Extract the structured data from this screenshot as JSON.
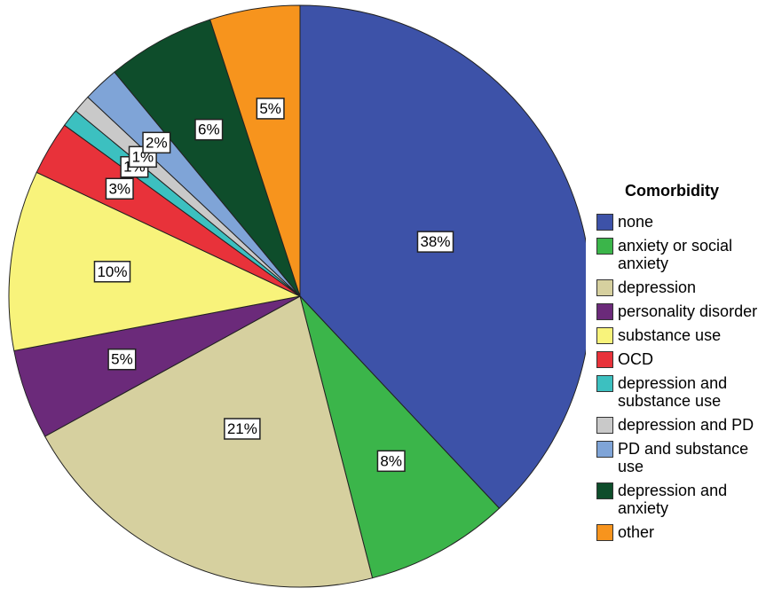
{
  "chart_data": {
    "type": "pie",
    "legend_title": "Comorbidity",
    "categories": [
      "none",
      "anxiety or social anxiety",
      "depression",
      "personality disorder",
      "substance use",
      "OCD",
      "depression and substance use",
      "depression and PD",
      "PD and substance use",
      "depression and anxiety",
      "other"
    ],
    "values": [
      38,
      8,
      21,
      5,
      10,
      3,
      1,
      1,
      2,
      6,
      5
    ],
    "value_labels": [
      "38%",
      "8%",
      "21%",
      "5%",
      "10%",
      "3%",
      "1%",
      "1%",
      "2%",
      "6%",
      "5%"
    ],
    "colors": [
      "#3d52a8",
      "#3bb54a",
      "#d6d09f",
      "#6b2a7a",
      "#f8f37b",
      "#e8323a",
      "#3cc0c0",
      "#c9c9c9",
      "#7fa4d7",
      "#0e4d2b",
      "#f7941d"
    ],
    "legend": "right"
  }
}
